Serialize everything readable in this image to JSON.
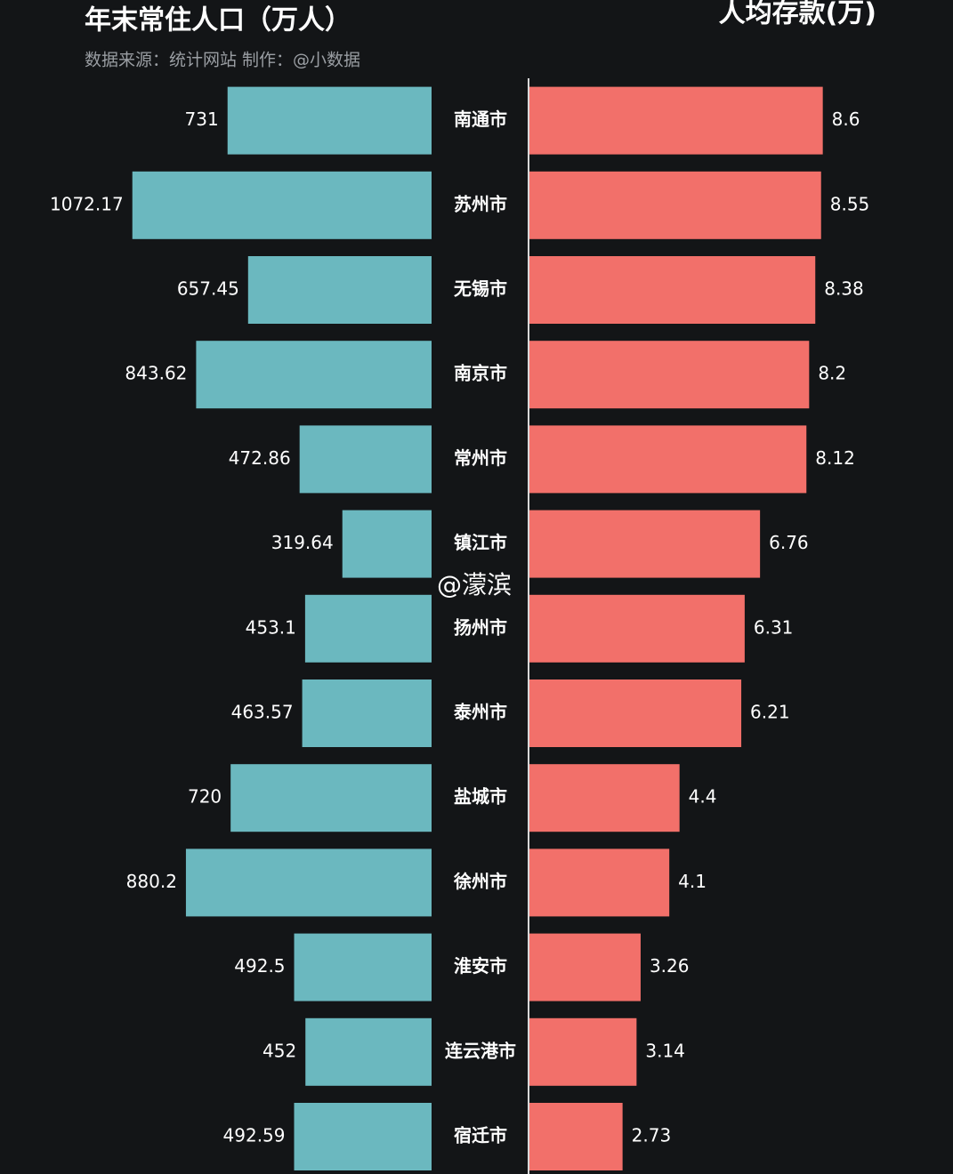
{
  "chart_data": {
    "type": "butterfly",
    "subtitle": "数据来源：统计网站 制作：@小数据",
    "annotation": "@濛滨",
    "categories": [
      "南通市",
      "苏州市",
      "无锡市",
      "南京市",
      "常州市",
      "镇江市",
      "扬州市",
      "泰州市",
      "盐城市",
      "徐州市",
      "淮安市",
      "连云港市",
      "宿迁市"
    ],
    "series": [
      {
        "name": "年末常住人口（万人）",
        "color": "#6bb8bf",
        "xlim": [
          0,
          1100
        ],
        "values": [
          731,
          1072.17,
          657.45,
          843.62,
          472.86,
          319.64,
          453.1,
          463.57,
          720,
          880.2,
          492.5,
          452,
          492.59
        ]
      },
      {
        "name": "人均存款(万)",
        "color": "#f2706a",
        "xlim": [
          0,
          9
        ],
        "values": [
          8.6,
          8.55,
          8.38,
          8.2,
          8.12,
          6.76,
          6.31,
          6.21,
          4.4,
          4.1,
          3.26,
          3.14,
          2.73
        ]
      }
    ]
  }
}
